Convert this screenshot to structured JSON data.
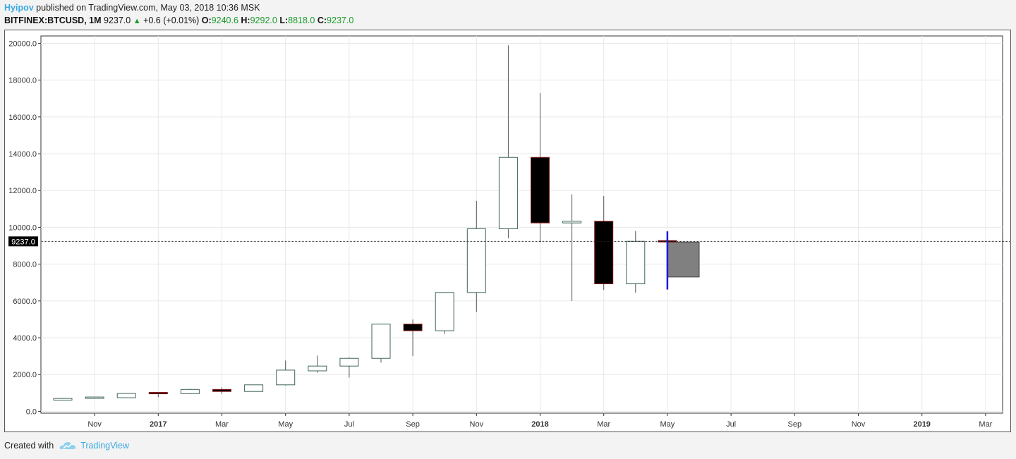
{
  "header": {
    "author": "Hyipov",
    "published_text": "published on TradingView.com, May 03, 2018 10:36 MSK",
    "symbol": "BITFINEX:BTCUSD, 1M",
    "last": "9237.0",
    "change": "+0.6 (+0.01%)",
    "o_label": "O:",
    "o_value": "9240.6",
    "h_label": "H:",
    "h_value": "9292.0",
    "l_label": "L:",
    "l_value": "8818.0",
    "c_label": "C:",
    "c_value": "9237.0"
  },
  "footer": {
    "created_with": "Created with",
    "brand": "TradingView"
  },
  "colors": {
    "up_border": "#3f6655",
    "down_border": "#8b1a1a",
    "down_fill": "#000000",
    "projection_fill": "#808080",
    "cursor": "#1a1ae6",
    "grid": "#e8e8e8",
    "accent": "#3aa9e3"
  },
  "chart_data": {
    "type": "candlestick",
    "y_ticks": [
      "0.0",
      "2000.0",
      "4000.0",
      "6000.0",
      "8000.0",
      "10000.0",
      "12000.0",
      "14000.0",
      "16000.0",
      "18000.0",
      "20000.0"
    ],
    "ylim": [
      -100,
      20400
    ],
    "x_ticks": [
      {
        "label": "Nov",
        "bold": false,
        "m": 1
      },
      {
        "label": "2017",
        "bold": true,
        "m": 3
      },
      {
        "label": "Mar",
        "bold": false,
        "m": 5
      },
      {
        "label": "May",
        "bold": false,
        "m": 7
      },
      {
        "label": "Jul",
        "bold": false,
        "m": 9
      },
      {
        "label": "Sep",
        "bold": false,
        "m": 11
      },
      {
        "label": "Nov",
        "bold": false,
        "m": 13
      },
      {
        "label": "2018",
        "bold": true,
        "m": 15
      },
      {
        "label": "Mar",
        "bold": false,
        "m": 17
      },
      {
        "label": "May",
        "bold": false,
        "m": 19
      },
      {
        "label": "Jul",
        "bold": false,
        "m": 21
      },
      {
        "label": "Sep",
        "bold": false,
        "m": 23
      },
      {
        "label": "Nov",
        "bold": false,
        "m": 25
      },
      {
        "label": "2019",
        "bold": true,
        "m": 27
      },
      {
        "label": "Mar",
        "bold": false,
        "m": 29
      }
    ],
    "last_price_label": "9237.0",
    "last_price": 9237,
    "candles": [
      {
        "m": 0,
        "o": 610,
        "h": 730,
        "l": 600,
        "c": 700
      },
      {
        "m": 1,
        "o": 700,
        "h": 750,
        "l": 690,
        "c": 740
      },
      {
        "m": 2,
        "o": 740,
        "h": 990,
        "l": 730,
        "c": 970
      },
      {
        "m": 3,
        "o": 990,
        "h": 1050,
        "l": 770,
        "c": 960
      },
      {
        "m": 4,
        "o": 960,
        "h": 1230,
        "l": 930,
        "c": 1190
      },
      {
        "m": 5,
        "o": 1190,
        "h": 1300,
        "l": 940,
        "c": 1080
      },
      {
        "m": 6,
        "o": 1080,
        "h": 1450,
        "l": 1080,
        "c": 1440
      },
      {
        "m": 7,
        "o": 1440,
        "h": 2760,
        "l": 1400,
        "c": 2240
      },
      {
        "m": 8,
        "o": 2200,
        "h": 3030,
        "l": 2100,
        "c": 2460
      },
      {
        "m": 9,
        "o": 2460,
        "h": 2940,
        "l": 1840,
        "c": 2880
      },
      {
        "m": 10,
        "o": 2880,
        "h": 4760,
        "l": 2650,
        "c": 4740
      },
      {
        "m": 11,
        "o": 4740,
        "h": 4990,
        "l": 3000,
        "c": 4380
      },
      {
        "m": 12,
        "o": 4380,
        "h": 6480,
        "l": 4200,
        "c": 6460
      },
      {
        "m": 13,
        "o": 6460,
        "h": 11440,
        "l": 5400,
        "c": 9920
      },
      {
        "m": 14,
        "o": 9920,
        "h": 19890,
        "l": 9400,
        "c": 13800
      },
      {
        "m": 15,
        "o": 13800,
        "h": 17300,
        "l": 9200,
        "c": 10240
      },
      {
        "m": 16,
        "o": 10240,
        "h": 11790,
        "l": 6000,
        "c": 10330
      },
      {
        "m": 17,
        "o": 10330,
        "h": 11700,
        "l": 6600,
        "c": 6930
      },
      {
        "m": 18,
        "o": 6930,
        "h": 9800,
        "l": 6450,
        "c": 9240
      },
      {
        "m": 19,
        "o": 9240,
        "h": 9292,
        "l": 8818,
        "c": 9237
      }
    ],
    "projection": {
      "m_start": 19,
      "m_end": 20,
      "top": 9200,
      "bottom": 7300
    },
    "cursor": {
      "m": 19,
      "high": 9780,
      "low": 6620
    }
  }
}
